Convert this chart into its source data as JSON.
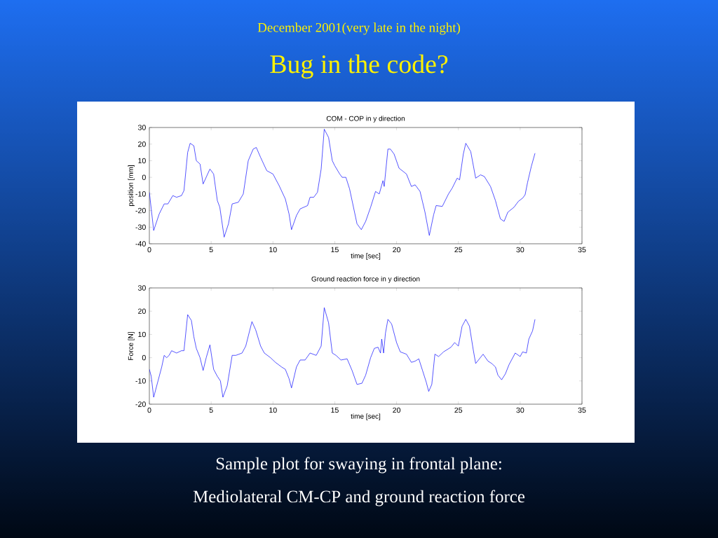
{
  "chart_data": [
    {
      "type": "line",
      "title": "COM - COP in y direction",
      "xlabel": "time [sec]",
      "ylabel": "position [mm]",
      "xlim": [
        0,
        35
      ],
      "ylim": [
        -40,
        30
      ],
      "xticks": [
        0,
        5,
        10,
        15,
        20,
        25,
        30,
        35
      ],
      "yticks": [
        -40,
        -30,
        -20,
        -10,
        0,
        10,
        20,
        30
      ],
      "annotations": [
        "December 2001(very late in the night)",
        "Bug in the code?"
      ],
      "series": [
        {
          "color": "#0000ff",
          "x": [
            0,
            0.35,
            0.8,
            1.2,
            1.5,
            1.9,
            2.2,
            2.6,
            2.8,
            3.1,
            3.3,
            3.6,
            3.8,
            4.1,
            4.35,
            4.9,
            5.2,
            5.5,
            5.7,
            6.05,
            6.4,
            6.7,
            7.2,
            7.6,
            8.0,
            8.4,
            8.65,
            9.0,
            9.5,
            10.0,
            10.5,
            11.0,
            11.3,
            11.5,
            11.9,
            12.2,
            12.8,
            13.0,
            13.3,
            13.6,
            13.9,
            14.15,
            14.5,
            14.8,
            15.0,
            15.4,
            15.6,
            15.9,
            16.2,
            16.8,
            17.15,
            17.5,
            17.9,
            18.3,
            18.6,
            18.9,
            19.0,
            19.3,
            19.5,
            19.8,
            20.2,
            20.8,
            21.2,
            21.5,
            21.9,
            22.3,
            22.65,
            23.0,
            23.2,
            23.7,
            24.2,
            24.5,
            24.9,
            25.1,
            25.4,
            25.6,
            26.0,
            26.25,
            26.4,
            26.8,
            27.1,
            27.6,
            28.0,
            28.4,
            28.7,
            29.0,
            29.5,
            29.85,
            30.2,
            30.4,
            30.6,
            30.9,
            31.2
          ],
          "values": [
            -9,
            -32,
            -22,
            -16,
            -16,
            -11,
            -12,
            -11,
            -8,
            15,
            20.5,
            19,
            10,
            8,
            -4,
            5,
            2,
            -14,
            -18,
            -36,
            -28,
            -16,
            -15,
            -10,
            10,
            17,
            18,
            12,
            4,
            2,
            -5,
            -13,
            -22,
            -31.5,
            -23,
            -19,
            -17,
            -12,
            -12,
            -9,
            5,
            29,
            24,
            10,
            7,
            2,
            0,
            0,
            -7,
            -28,
            -31.5,
            -26.5,
            -18,
            -8.5,
            -10,
            -2,
            -5.5,
            17,
            17,
            14,
            5.5,
            2,
            -5.5,
            -4.5,
            -8.5,
            -21,
            -35,
            -22.5,
            -17,
            -17.5,
            -10,
            -6.5,
            -0.5,
            -1.5,
            14,
            20.5,
            15.5,
            5.5,
            -0.5,
            1.5,
            0.5,
            -5.5,
            -14,
            -25,
            -26.5,
            -21,
            -18,
            -14.5,
            -12.5,
            -10.5,
            -3,
            6.5,
            14.5
          ]
        }
      ]
    },
    {
      "type": "line",
      "title": "Ground reaction force in y direction",
      "xlabel": "time [sec]",
      "ylabel": "Force [N]",
      "xlim": [
        0,
        35
      ],
      "ylim": [
        -20,
        30
      ],
      "xticks": [
        0,
        5,
        10,
        15,
        20,
        25,
        30,
        35
      ],
      "yticks": [
        -20,
        -10,
        0,
        10,
        20,
        30
      ],
      "annotations": [
        "Sample plot for swaying in frontal plane:",
        "Mediolateral CM-CP and ground reaction force"
      ],
      "series": [
        {
          "color": "#0000ff",
          "x": [
            0,
            0.15,
            0.35,
            0.7,
            1.0,
            1.2,
            1.4,
            1.6,
            1.8,
            2.2,
            2.6,
            2.8,
            3.1,
            3.4,
            3.6,
            3.8,
            4.1,
            4.35,
            4.6,
            4.9,
            5.2,
            5.5,
            5.75,
            5.95,
            6.3,
            6.7,
            7.0,
            7.5,
            7.8,
            8.3,
            8.6,
            9.0,
            9.3,
            9.8,
            10.2,
            10.7,
            11.0,
            11.3,
            11.5,
            11.9,
            12.2,
            12.6,
            13.0,
            13.5,
            13.9,
            14.15,
            14.5,
            14.8,
            15.1,
            15.5,
            16.0,
            16.4,
            16.8,
            17.2,
            17.5,
            17.9,
            18.2,
            18.5,
            18.7,
            18.8,
            18.95,
            19.1,
            19.3,
            19.6,
            20.0,
            20.3,
            20.8,
            21.2,
            21.5,
            21.8,
            22.1,
            22.4,
            22.6,
            22.85,
            23.1,
            23.4,
            23.8,
            24.4,
            24.7,
            25.0,
            25.3,
            25.6,
            25.9,
            26.2,
            26.4,
            26.7,
            27.0,
            27.4,
            27.7,
            28.0,
            28.2,
            28.5,
            28.8,
            29.1,
            29.6,
            30.0,
            30.2,
            30.5,
            30.7,
            31.0,
            31.2
          ],
          "values": [
            -5,
            -8,
            -17,
            -10,
            -4,
            1,
            0,
            1,
            3,
            2,
            3,
            3,
            18.5,
            16,
            9,
            4,
            0,
            -5.5,
            0,
            5.5,
            -5,
            -8,
            -10,
            -17,
            -12,
            1,
            1,
            2,
            5,
            15.5,
            12,
            5,
            2,
            0,
            -2,
            -4,
            -5,
            -9,
            -13,
            -4,
            -1,
            -1,
            2,
            1,
            5,
            21.5,
            15,
            2,
            1,
            -1,
            -0.5,
            -5.5,
            -11.5,
            -11,
            -7.5,
            0,
            4,
            4.5,
            2,
            8,
            2,
            10.5,
            16.5,
            14.5,
            6.5,
            2.5,
            1.5,
            -2,
            -1.5,
            -0.5,
            -5.5,
            -10.5,
            -14.5,
            -11.5,
            1.5,
            0.5,
            2.5,
            4.5,
            6.5,
            5,
            13.5,
            16.5,
            13.5,
            3.5,
            -2.5,
            -0.5,
            1.5,
            -1.5,
            -2.5,
            -4,
            -7.5,
            -9.5,
            -7,
            -3,
            2,
            0.5,
            2.5,
            2,
            8,
            11.5,
            16.5
          ]
        }
      ]
    }
  ]
}
